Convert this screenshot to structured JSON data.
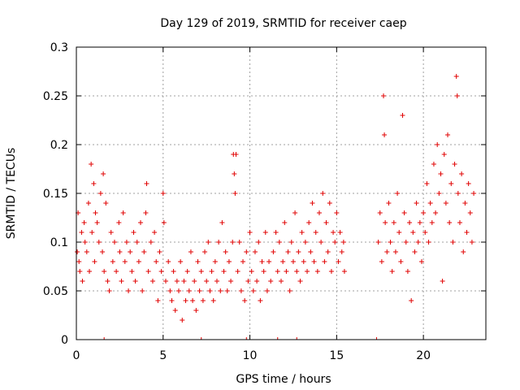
{
  "chart_data": {
    "type": "scatter",
    "title": "Day 129 of 2019, SRMTID for receiver caep",
    "xlabel": "GPS time / hours",
    "ylabel": "SRMTID / TECUs",
    "xlim": [
      0,
      23.6
    ],
    "ylim": [
      0,
      0.3
    ],
    "grid": true,
    "xticks": [
      0,
      5,
      10,
      15,
      20
    ],
    "xtick_labels": [
      "0",
      "5",
      "10",
      "15",
      "20"
    ],
    "yticks": [
      0,
      0.05,
      0.1,
      0.15,
      0.2,
      0.25,
      0.3
    ],
    "ytick_labels": [
      "0",
      "0.05",
      "0.1",
      "0.15",
      "0.2",
      "0.25",
      "0.3"
    ],
    "series": [
      {
        "name": "SRMTID",
        "color": "#e00000",
        "marker": "plus",
        "segments": [
          {
            "x_start": 0.0,
            "x_end": 15.5,
            "note": "continuous data"
          },
          {
            "x_start": 17.4,
            "x_end": 22.9,
            "note": "continuous data after gap"
          }
        ],
        "points": [
          [
            0.05,
            0.09
          ],
          [
            0.1,
            0.13
          ],
          [
            0.15,
            0.08
          ],
          [
            0.2,
            0.07
          ],
          [
            0.3,
            0.11
          ],
          [
            0.35,
            0.06
          ],
          [
            0.45,
            0.12
          ],
          [
            0.5,
            0.1
          ],
          [
            0.6,
            0.09
          ],
          [
            0.7,
            0.14
          ],
          [
            0.75,
            0.07
          ],
          [
            0.85,
            0.18
          ],
          [
            0.9,
            0.11
          ],
          [
            1.0,
            0.16
          ],
          [
            1.05,
            0.08
          ],
          [
            1.1,
            0.13
          ],
          [
            1.2,
            0.12
          ],
          [
            1.3,
            0.1
          ],
          [
            1.4,
            0.15
          ],
          [
            1.5,
            0.09
          ],
          [
            1.55,
            0.17
          ],
          [
            1.6,
            0.07
          ],
          [
            1.7,
            0.14
          ],
          [
            1.8,
            0.06
          ],
          [
            1.9,
            0.05
          ],
          [
            2.0,
            0.11
          ],
          [
            2.1,
            0.08
          ],
          [
            2.2,
            0.1
          ],
          [
            2.3,
            0.07
          ],
          [
            2.45,
            0.12
          ],
          [
            2.5,
            0.09
          ],
          [
            2.6,
            0.06
          ],
          [
            2.7,
            0.13
          ],
          [
            2.8,
            0.08
          ],
          [
            2.9,
            0.1
          ],
          [
            3.0,
            0.05
          ],
          [
            3.1,
            0.09
          ],
          [
            3.2,
            0.07
          ],
          [
            3.3,
            0.11
          ],
          [
            3.4,
            0.06
          ],
          [
            3.5,
            0.1
          ],
          [
            3.6,
            0.08
          ],
          [
            3.7,
            0.12
          ],
          [
            3.8,
            0.05
          ],
          [
            3.9,
            0.09
          ],
          [
            4.0,
            0.13
          ],
          [
            4.05,
            0.16
          ],
          [
            4.15,
            0.07
          ],
          [
            4.3,
            0.1
          ],
          [
            4.4,
            0.06
          ],
          [
            4.5,
            0.11
          ],
          [
            4.6,
            0.08
          ],
          [
            4.7,
            0.04
          ],
          [
            4.8,
            0.09
          ],
          [
            4.9,
            0.07
          ],
          [
            5.0,
            0.15
          ],
          [
            5.05,
            0.12
          ],
          [
            5.15,
            0.06
          ],
          [
            5.3,
            0.08
          ],
          [
            5.4,
            0.05
          ],
          [
            5.5,
            0.04
          ],
          [
            5.6,
            0.07
          ],
          [
            5.7,
            0.03
          ],
          [
            5.8,
            0.06
          ],
          [
            5.9,
            0.05
          ],
          [
            6.0,
            0.08
          ],
          [
            6.1,
            0.02
          ],
          [
            6.2,
            0.06
          ],
          [
            6.3,
            0.04
          ],
          [
            6.4,
            0.07
          ],
          [
            6.5,
            0.05
          ],
          [
            6.6,
            0.09
          ],
          [
            6.7,
            0.04
          ],
          [
            6.8,
            0.06
          ],
          [
            6.9,
            0.03
          ],
          [
            7.0,
            0.08
          ],
          [
            7.1,
            0.05
          ],
          [
            7.2,
            0.07
          ],
          [
            7.3,
            0.04
          ],
          [
            7.4,
            0.09
          ],
          [
            7.5,
            0.06
          ],
          [
            7.6,
            0.1
          ],
          [
            7.7,
            0.05
          ],
          [
            7.8,
            0.07
          ],
          [
            7.9,
            0.04
          ],
          [
            8.0,
            0.08
          ],
          [
            8.1,
            0.06
          ],
          [
            8.2,
            0.1
          ],
          [
            8.3,
            0.05
          ],
          [
            8.4,
            0.12
          ],
          [
            8.5,
            0.07
          ],
          [
            8.6,
            0.09
          ],
          [
            8.7,
            0.05
          ],
          [
            8.8,
            0.08
          ],
          [
            8.9,
            0.06
          ],
          [
            9.0,
            0.1
          ],
          [
            9.05,
            0.19
          ],
          [
            9.1,
            0.17
          ],
          [
            9.15,
            0.15
          ],
          [
            9.2,
            0.19
          ],
          [
            9.3,
            0.07
          ],
          [
            9.4,
            0.1
          ],
          [
            9.5,
            0.05
          ],
          [
            9.6,
            0.08
          ],
          [
            9.7,
            0.04
          ],
          [
            9.8,
            0.09
          ],
          [
            9.9,
            0.06
          ],
          [
            10.0,
            0.11
          ],
          [
            10.1,
            0.07
          ],
          [
            10.2,
            0.05
          ],
          [
            10.3,
            0.09
          ],
          [
            10.4,
            0.06
          ],
          [
            10.5,
            0.1
          ],
          [
            10.6,
            0.04
          ],
          [
            10.7,
            0.08
          ],
          [
            10.8,
            0.07
          ],
          [
            10.9,
            0.11
          ],
          [
            11.0,
            0.05
          ],
          [
            11.1,
            0.08
          ],
          [
            11.2,
            0.06
          ],
          [
            11.35,
            0.09
          ],
          [
            11.5,
            0.11
          ],
          [
            11.6,
            0.07
          ],
          [
            11.7,
            0.1
          ],
          [
            11.8,
            0.06
          ],
          [
            11.9,
            0.08
          ],
          [
            12.0,
            0.12
          ],
          [
            12.1,
            0.07
          ],
          [
            12.2,
            0.09
          ],
          [
            12.3,
            0.05
          ],
          [
            12.4,
            0.1
          ],
          [
            12.5,
            0.08
          ],
          [
            12.6,
            0.13
          ],
          [
            12.7,
            0.07
          ],
          [
            12.8,
            0.09
          ],
          [
            12.9,
            0.06
          ],
          [
            13.0,
            0.11
          ],
          [
            13.1,
            0.08
          ],
          [
            13.2,
            0.1
          ],
          [
            13.3,
            0.07
          ],
          [
            13.4,
            0.12
          ],
          [
            13.5,
            0.09
          ],
          [
            13.6,
            0.14
          ],
          [
            13.7,
            0.08
          ],
          [
            13.8,
            0.11
          ],
          [
            13.9,
            0.07
          ],
          [
            14.0,
            0.13
          ],
          [
            14.1,
            0.1
          ],
          [
            14.2,
            0.15
          ],
          [
            14.3,
            0.08
          ],
          [
            14.4,
            0.12
          ],
          [
            14.5,
            0.09
          ],
          [
            14.6,
            0.14
          ],
          [
            14.7,
            0.07
          ],
          [
            14.8,
            0.11
          ],
          [
            14.9,
            0.1
          ],
          [
            15.0,
            0.13
          ],
          [
            15.1,
            0.08
          ],
          [
            15.2,
            0.11
          ],
          [
            15.3,
            0.09
          ],
          [
            15.4,
            0.1
          ],
          [
            15.45,
            0.07
          ],
          [
            17.4,
            0.1
          ],
          [
            17.5,
            0.13
          ],
          [
            17.6,
            0.08
          ],
          [
            17.7,
            0.25
          ],
          [
            17.75,
            0.21
          ],
          [
            17.8,
            0.12
          ],
          [
            17.9,
            0.09
          ],
          [
            18.0,
            0.14
          ],
          [
            18.1,
            0.1
          ],
          [
            18.2,
            0.07
          ],
          [
            18.3,
            0.12
          ],
          [
            18.4,
            0.09
          ],
          [
            18.5,
            0.15
          ],
          [
            18.6,
            0.11
          ],
          [
            18.7,
            0.08
          ],
          [
            18.8,
            0.23
          ],
          [
            18.9,
            0.13
          ],
          [
            19.0,
            0.1
          ],
          [
            19.1,
            0.07
          ],
          [
            19.2,
            0.12
          ],
          [
            19.3,
            0.04
          ],
          [
            19.4,
            0.11
          ],
          [
            19.5,
            0.09
          ],
          [
            19.6,
            0.14
          ],
          [
            19.7,
            0.1
          ],
          [
            19.8,
            0.12
          ],
          [
            19.9,
            0.08
          ],
          [
            20.0,
            0.13
          ],
          [
            20.1,
            0.11
          ],
          [
            20.2,
            0.16
          ],
          [
            20.3,
            0.1
          ],
          [
            20.4,
            0.14
          ],
          [
            20.5,
            0.12
          ],
          [
            20.6,
            0.18
          ],
          [
            20.7,
            0.13
          ],
          [
            20.8,
            0.2
          ],
          [
            20.9,
            0.15
          ],
          [
            21.0,
            0.17
          ],
          [
            21.1,
            0.06
          ],
          [
            21.2,
            0.19
          ],
          [
            21.3,
            0.14
          ],
          [
            21.4,
            0.21
          ],
          [
            21.5,
            0.12
          ],
          [
            21.6,
            0.16
          ],
          [
            21.7,
            0.1
          ],
          [
            21.8,
            0.18
          ],
          [
            21.9,
            0.27
          ],
          [
            21.95,
            0.25
          ],
          [
            22.0,
            0.15
          ],
          [
            22.1,
            0.12
          ],
          [
            22.2,
            0.17
          ],
          [
            22.3,
            0.09
          ],
          [
            22.4,
            0.14
          ],
          [
            22.5,
            0.11
          ],
          [
            22.6,
            0.16
          ],
          [
            22.7,
            0.13
          ],
          [
            22.8,
            0.1
          ],
          [
            22.9,
            0.15
          ]
        ]
      }
    ],
    "zero_markers_x": [
      1.6,
      7.2,
      9.8,
      11.6,
      12.7,
      17.3
    ]
  }
}
